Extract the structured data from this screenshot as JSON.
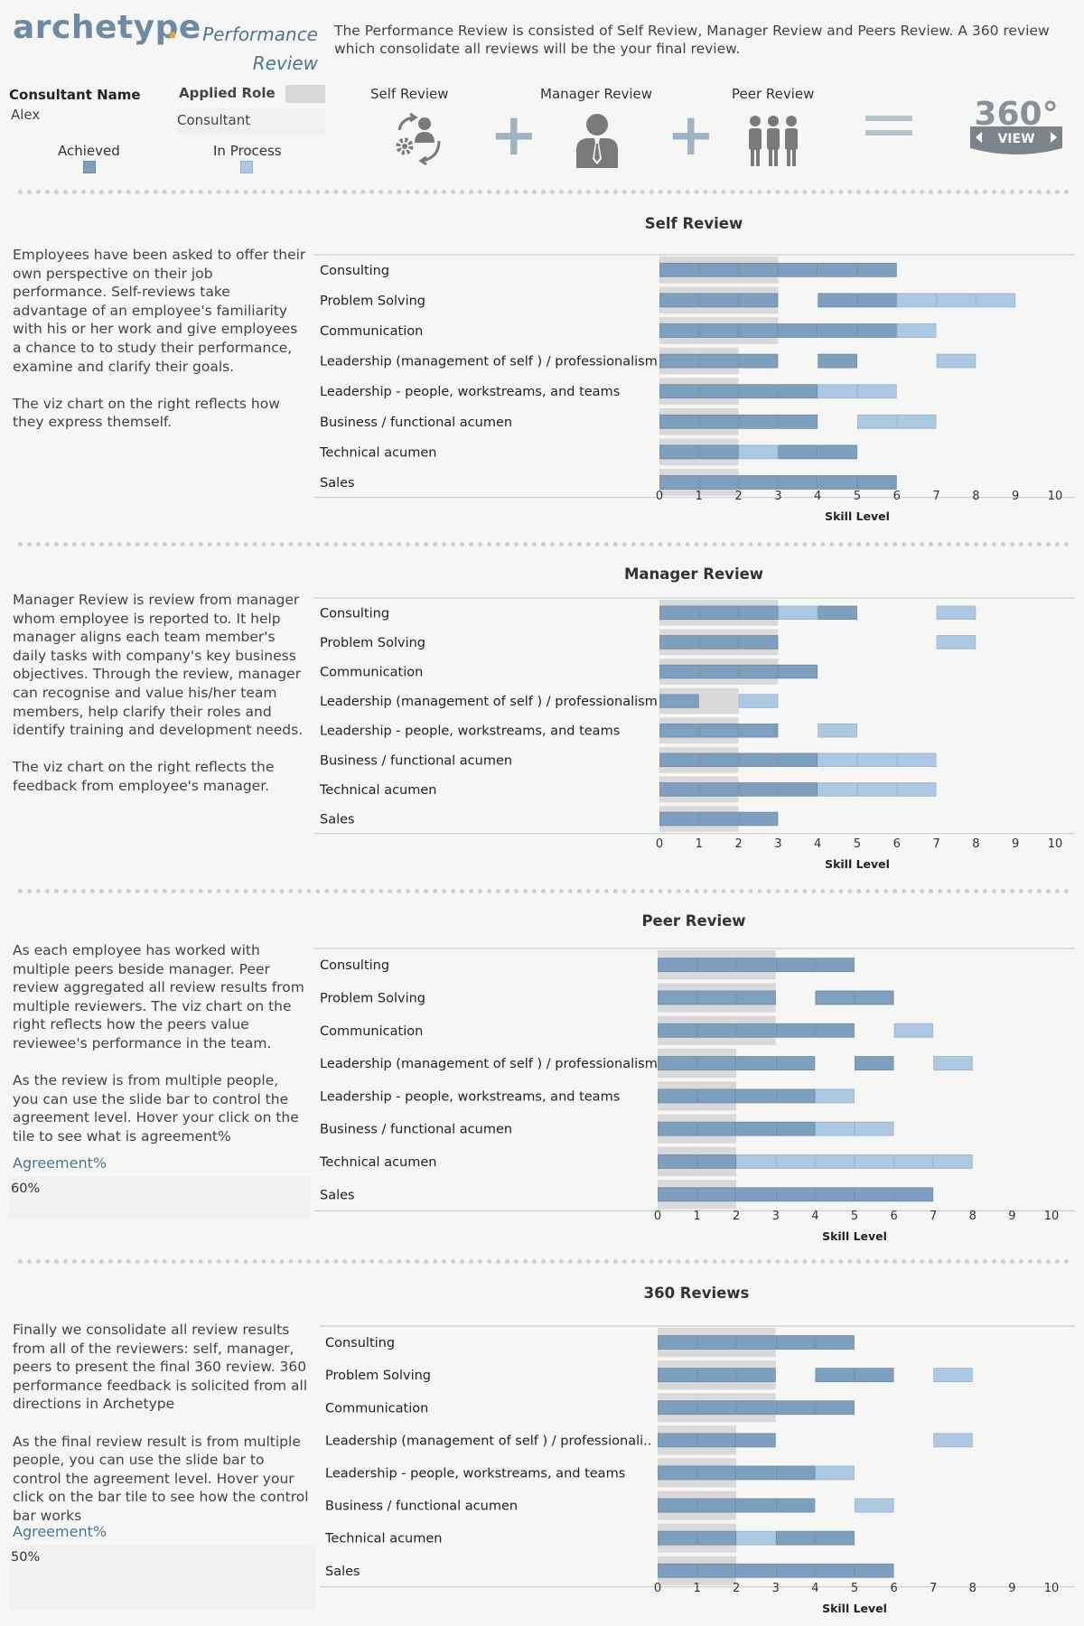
{
  "header": {
    "brand": "archetype",
    "brand_dot": ".",
    "subtitle": "Performance Review",
    "intro": "The Performance Review is consisted of Self Review, Manager Review and Peers Review. A 360 review which consolidate all reviews will be the your final review.",
    "consultant_name_label": "Consultant Name",
    "consultant_name": "Alex",
    "applied_role_label": "Applied Role",
    "applied_role": "Consultant",
    "legend_achieved": "Achieved",
    "legend_in_process": "In Process",
    "col_self": "Self Review",
    "col_manager": "Manager Review",
    "col_peer": "Peer Review",
    "badge_360": "360°",
    "badge_view": "VIEW",
    "plus": "+"
  },
  "colors": {
    "achieved": "#7f9fbe",
    "in_process": "#adc8e1",
    "band": "#d9d9d9",
    "icon_gray": "#7a7a7a"
  },
  "sections": [
    {
      "title": "Self Review",
      "description": "Employees have been asked to offer their own perspective on their job performance. Self-reviews take advantage of an employee's familiarity with his or her work and give employees a chance to to study their performance, examine and clarify their goals.\n\nThe viz chart on the right reflects how they express themself.",
      "xlabel": "Skill Level"
    },
    {
      "title": "Manager Review",
      "description": "Manager Review is review from manager whom employee is reported to. It help manager aligns each team member's daily tasks with company's key business objectives. Through the review, manager can recognise and value his/her team members, help clarify their roles and identify training and development needs.\n\nThe viz chart on the right reflects the feedback from employee's manager.",
      "xlabel": "Skill Level"
    },
    {
      "title": "Peer Review",
      "description": "As each employee has worked with multiple peers beside manager. Peer review aggregated all review results from multiple reviewers. The viz chart on the right reflects how the peers value reviewee's performance in the team.\n\nAs the review is from multiple people, you can use the slide bar to control the agreement level. Hover your click on the tile to see what is agreement%",
      "agreement_label": "Agreement%",
      "agreement_value": "60%",
      "xlabel": "Skill Level"
    },
    {
      "title": "360 Reviews",
      "description": "Finally we consolidate all review results from all of the reviewers: self, manager, peers to present the final 360 review. 360 performance feedback is solicited from all directions in Archetype\n\nAs the final review result is from multiple people, you can use the slide bar to control the agreement level. Hover your click on the bar tile to see how the control bar works",
      "agreement_label": "Agreement%",
      "agreement_value": "50%",
      "xlabel": "Skill Level"
    }
  ],
  "chart_data": [
    {
      "type": "bar",
      "title": "Self Review",
      "xlabel": "Skill Level",
      "xlim": [
        0,
        10
      ],
      "xticks": [
        "0",
        "1",
        "2",
        "3",
        "4",
        "5",
        "6",
        "7",
        "8",
        "9",
        "10"
      ],
      "categories": [
        "Consulting",
        "Problem Solving",
        "Communication",
        "Leadership (management of self ) / professionalism",
        "Leadership - people, workstreams, and teams",
        "Business / functional acumen",
        "Technical acumen",
        "Sales"
      ],
      "band": [
        [
          0,
          3
        ],
        [
          0,
          3
        ],
        [
          0,
          3
        ],
        [
          0,
          2
        ],
        [
          0,
          2
        ],
        [
          0,
          2
        ],
        [
          0,
          2
        ],
        [
          0,
          2
        ]
      ],
      "series": [
        {
          "name": "Achieved",
          "cells": [
            [
              1,
              2,
              3,
              4,
              5,
              6
            ],
            [
              1,
              2,
              3,
              5,
              6
            ],
            [
              1,
              2,
              3,
              4,
              5,
              6
            ],
            [
              1,
              2,
              3,
              5
            ],
            [
              1,
              2,
              3,
              4
            ],
            [
              1,
              2,
              3,
              4
            ],
            [
              1,
              2,
              4,
              5
            ],
            [
              1,
              2,
              3,
              4,
              5,
              6
            ]
          ]
        },
        {
          "name": "In Process",
          "cells": [
            [],
            [
              7,
              8,
              9
            ],
            [
              7
            ],
            [
              8
            ],
            [
              5,
              6
            ],
            [
              6,
              7
            ],
            [
              3
            ],
            []
          ]
        }
      ]
    },
    {
      "type": "bar",
      "title": "Manager Review",
      "xlabel": "Skill Level",
      "xlim": [
        0,
        10
      ],
      "xticks": [
        "0",
        "1",
        "2",
        "3",
        "4",
        "5",
        "6",
        "7",
        "8",
        "9",
        "10"
      ],
      "categories": [
        "Consulting",
        "Problem Solving",
        "Communication",
        "Leadership (management of self ) / professionalism",
        "Leadership - people, workstreams, and teams",
        "Business / functional acumen",
        "Technical acumen",
        "Sales"
      ],
      "band": [
        [
          0,
          3
        ],
        [
          0,
          3
        ],
        [
          0,
          3
        ],
        [
          0,
          2
        ],
        [
          0,
          2
        ],
        [
          0,
          2
        ],
        [
          0,
          2
        ],
        [
          0,
          2
        ]
      ],
      "series": [
        {
          "name": "Achieved",
          "cells": [
            [
              1,
              2,
              3,
              5
            ],
            [
              1,
              2,
              3
            ],
            [
              1,
              2,
              3,
              4
            ],
            [
              1
            ],
            [
              1,
              2,
              3
            ],
            [
              1,
              2,
              3,
              4
            ],
            [
              1,
              2,
              3,
              4
            ],
            [
              1,
              2,
              3
            ]
          ]
        },
        {
          "name": "In Process",
          "cells": [
            [
              4,
              8
            ],
            [
              8
            ],
            [],
            [
              3
            ],
            [
              5
            ],
            [
              5,
              6,
              7
            ],
            [
              5,
              6,
              7
            ],
            []
          ]
        }
      ]
    },
    {
      "type": "bar",
      "title": "Peer Review",
      "xlabel": "Skill Level",
      "xlim": [
        0,
        10
      ],
      "xticks": [
        "0",
        "1",
        "2",
        "3",
        "4",
        "5",
        "6",
        "7",
        "8",
        "9",
        "10"
      ],
      "categories": [
        "Consulting",
        "Problem Solving",
        "Communication",
        "Leadership (management of self ) / professionalism",
        "Leadership - people, workstreams, and teams",
        "Business / functional acumen",
        "Technical acumen",
        "Sales"
      ],
      "band": [
        [
          0,
          3
        ],
        [
          0,
          3
        ],
        [
          0,
          3
        ],
        [
          0,
          2
        ],
        [
          0,
          2
        ],
        [
          0,
          2
        ],
        [
          0,
          2
        ],
        [
          0,
          2
        ]
      ],
      "series": [
        {
          "name": "Achieved",
          "cells": [
            [
              1,
              2,
              3,
              4,
              5
            ],
            [
              1,
              2,
              3,
              5,
              6
            ],
            [
              1,
              2,
              3,
              4,
              5
            ],
            [
              1,
              2,
              3,
              4,
              6
            ],
            [
              1,
              2,
              3,
              4
            ],
            [
              1,
              2,
              3,
              4
            ],
            [
              1,
              2
            ],
            [
              1,
              2,
              3,
              4,
              5,
              6,
              7
            ]
          ]
        },
        {
          "name": "In Process",
          "cells": [
            [],
            [],
            [
              7
            ],
            [
              8
            ],
            [
              5
            ],
            [
              5,
              6
            ],
            [
              3,
              4,
              5,
              6,
              7,
              8
            ],
            []
          ]
        }
      ]
    },
    {
      "type": "bar",
      "title": "360 Reviews",
      "xlabel": "Skill Level",
      "xlim": [
        0,
        10
      ],
      "xticks": [
        "0",
        "1",
        "2",
        "3",
        "4",
        "5",
        "6",
        "7",
        "8",
        "9",
        "10"
      ],
      "categories": [
        "Consulting",
        "Problem Solving",
        "Communication",
        "Leadership (management of self ) / professionali..",
        "Leadership - people, workstreams, and teams",
        "Business / functional acumen",
        "Technical acumen",
        "Sales"
      ],
      "band": [
        [
          0,
          3
        ],
        [
          0,
          3
        ],
        [
          0,
          3
        ],
        [
          0,
          2
        ],
        [
          0,
          2
        ],
        [
          0,
          2
        ],
        [
          0,
          2
        ],
        [
          0,
          2
        ]
      ],
      "series": [
        {
          "name": "Achieved",
          "cells": [
            [
              1,
              2,
              3,
              4,
              5
            ],
            [
              1,
              2,
              3,
              5,
              6
            ],
            [
              1,
              2,
              3,
              4,
              5
            ],
            [
              1,
              2,
              3
            ],
            [
              1,
              2,
              3,
              4
            ],
            [
              1,
              2,
              3,
              4
            ],
            [
              1,
              2,
              4,
              5
            ],
            [
              1,
              2,
              3,
              4,
              5,
              6
            ]
          ]
        },
        {
          "name": "In Process",
          "cells": [
            [],
            [
              8
            ],
            [],
            [
              8
            ],
            [
              5
            ],
            [
              6
            ],
            [
              3
            ],
            []
          ]
        }
      ]
    }
  ]
}
